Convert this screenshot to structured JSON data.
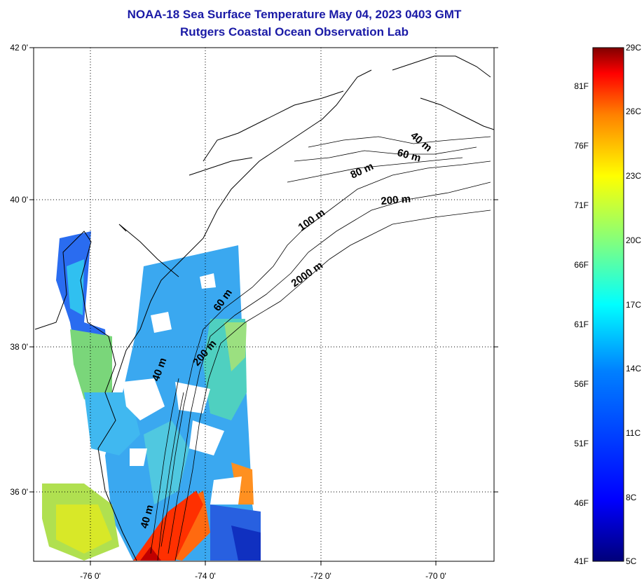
{
  "title": {
    "line1": "NOAA-18 Sea Surface Temperature May 04, 2023 0403 GMT",
    "line2": "Rutgers Coastal Ocean Observation Lab"
  },
  "map": {
    "lon_range": [
      -77.0,
      -69.0
    ],
    "lat_range": [
      35.0,
      42.0
    ],
    "lat_ticks": [
      {
        "value": 42,
        "label": "42 0'"
      },
      {
        "value": 40,
        "label": "40 0'"
      },
      {
        "value": 38,
        "label": "38 0'"
      },
      {
        "value": 36,
        "label": "36 0'"
      }
    ],
    "lon_ticks": [
      {
        "value": -76,
        "label": "-76 0'"
      },
      {
        "value": -74,
        "label": "-74 0'"
      },
      {
        "value": -72,
        "label": "-72 0'"
      },
      {
        "value": -70,
        "label": "-70 0'"
      }
    ],
    "grid": "dotted",
    "isobath_labels": [
      "40 m",
      "60 m",
      "80 m",
      "200 m",
      "100 m",
      "2000 m",
      "60 m",
      "200 m",
      "40 m",
      "40 m"
    ]
  },
  "colorbar": {
    "celsius": [
      "29C",
      "26C",
      "23C",
      "20C",
      "17C",
      "14C",
      "11C",
      "8C",
      "5C"
    ],
    "fahrenheit": [
      "81F",
      "76F",
      "71F",
      "66F",
      "61F",
      "56F",
      "51F",
      "46F",
      "41F"
    ],
    "colors": [
      "#800000",
      "#ff0000",
      "#ff8000",
      "#ffff00",
      "#80ff80",
      "#00ffff",
      "#0080ff",
      "#0000ff",
      "#000080"
    ]
  }
}
